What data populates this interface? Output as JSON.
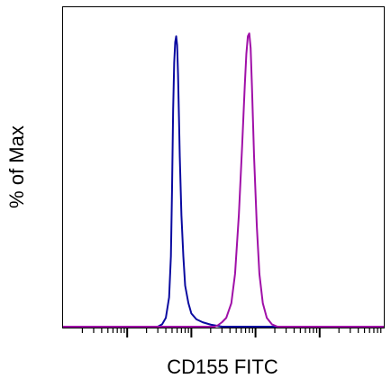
{
  "chart_data": {
    "type": "line",
    "title": "",
    "xlabel": "CD155 FITC",
    "ylabel": "% of Max",
    "x_scale": "log",
    "xlim": [
      1,
      100000
    ],
    "ylim": [
      0,
      100
    ],
    "grid": false,
    "legend": "none",
    "series": [
      {
        "color": "#0a0aa0",
        "x": [
          1,
          30,
          35,
          40,
          45,
          48,
          50,
          52,
          54,
          56,
          58,
          60,
          62,
          64,
          66,
          70,
          75,
          80,
          90,
          100,
          120,
          150,
          200,
          300,
          100000
        ],
        "y": [
          0,
          0,
          0.8,
          3,
          10,
          24,
          47,
          74,
          90,
          97,
          99,
          96,
          86,
          72,
          58,
          38,
          24,
          14,
          8,
          4.5,
          2.5,
          1.5,
          0.7,
          0,
          0
        ]
      },
      {
        "color": "#a010a8",
        "x": [
          1,
          230,
          260,
          300,
          350,
          420,
          480,
          550,
          620,
          680,
          720,
          760,
          800,
          840,
          880,
          950,
          1050,
          1150,
          1300,
          1500,
          1800,
          2200,
          100000
        ],
        "y": [
          0,
          0,
          0.5,
          1.5,
          3,
          8,
          18,
          38,
          62,
          82,
          93,
          99,
          100,
          95,
          82,
          58,
          34,
          18,
          8,
          3,
          0.8,
          0,
          0
        ]
      }
    ]
  }
}
